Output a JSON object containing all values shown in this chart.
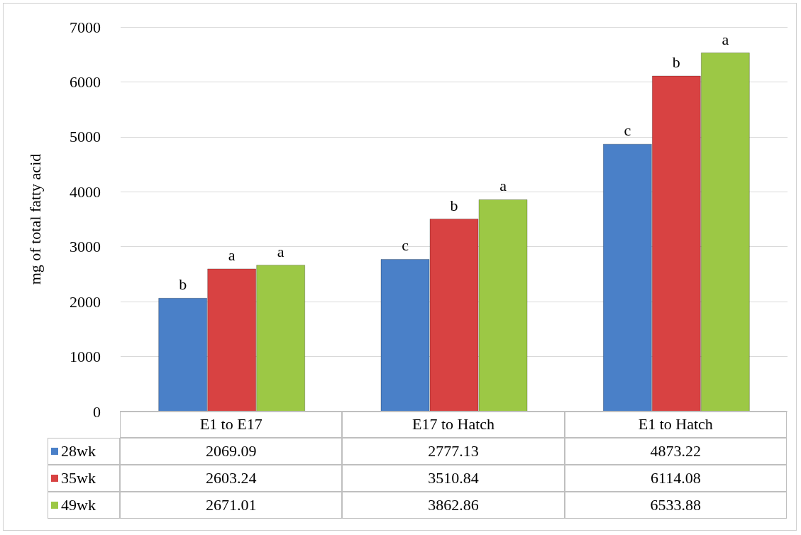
{
  "chart_data": {
    "type": "bar",
    "ylabel": "mg of total fatty acid",
    "categories": [
      "E1 to E17",
      "E17 to Hatch",
      "E1 to Hatch"
    ],
    "series": [
      {
        "name": "28wk",
        "color": "#4a80c8",
        "values": [
          2069.09,
          2777.13,
          4873.22
        ]
      },
      {
        "name": "35wk",
        "color": "#d84242",
        "values": [
          2603.24,
          3510.84,
          6114.08
        ]
      },
      {
        "name": "49wk",
        "color": "#9cc845",
        "values": [
          2671.01,
          3862.86,
          6533.88
        ]
      }
    ],
    "ylim": [
      0,
      7000
    ],
    "yticks": [
      0,
      1000,
      2000,
      3000,
      4000,
      5000,
      6000,
      7000
    ],
    "grid": "y",
    "legend": "bottom",
    "data_labels": true,
    "annotations": [
      "b",
      "a",
      "a",
      "c",
      "b",
      "a",
      "c",
      "b",
      "a"
    ]
  }
}
